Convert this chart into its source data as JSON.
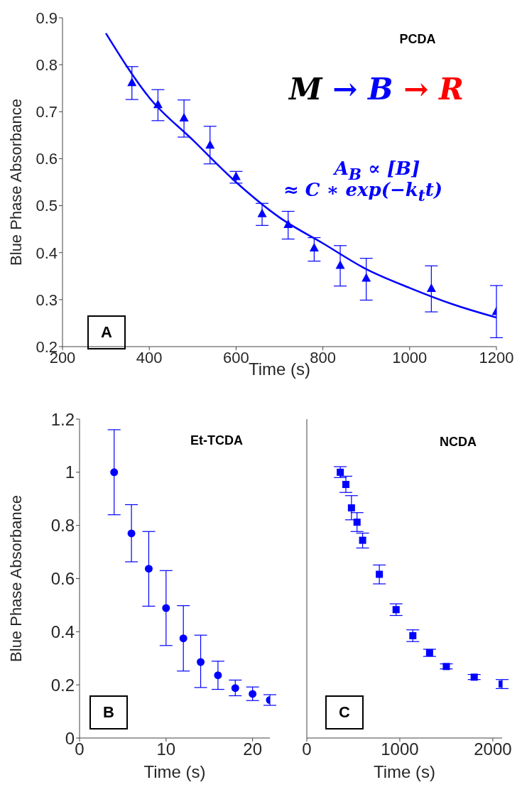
{
  "chart_data": [
    {
      "type": "scatter",
      "xlabel": "Time (s)",
      "ylabel": "Blue Phase Absorbance",
      "marker": "triangle",
      "xlim": [
        200,
        1200
      ],
      "xticks": [
        200,
        400,
        600,
        800,
        1000,
        1200
      ],
      "ylim": [
        0.2,
        0.9
      ],
      "yticks": [
        0.2,
        0.3,
        0.4,
        0.5,
        0.6,
        0.7,
        0.8,
        0.9
      ],
      "annotations": [
        "PCDA",
        "M → B → R",
        "A$_{B}$ ∝ [B]",
        "≈ C ∗ exp(−k$_{t}$t)",
        "A"
      ],
      "series": [
        {
          "color": "#0000ff",
          "x": [
            360,
            420,
            480,
            540,
            600,
            660,
            720,
            780,
            840,
            900,
            1050,
            1200
          ],
          "values": [
            0.762,
            0.715,
            0.687,
            0.629,
            0.562,
            0.483,
            0.46,
            0.41,
            0.373,
            0.346,
            0.324,
            0.275
          ],
          "errors": [
            [
              0.726,
              0.796
            ],
            [
              0.681,
              0.747
            ],
            [
              0.646,
              0.725
            ],
            [
              0.589,
              0.669
            ],
            [
              0.548,
              0.573
            ],
            [
              0.458,
              0.505
            ],
            [
              0.429,
              0.488
            ],
            [
              0.382,
              0.432
            ],
            [
              0.329,
              0.415
            ],
            [
              0.299,
              0.388
            ],
            [
              0.274,
              0.372
            ],
            [
              0.219,
              0.33
            ]
          ]
        },
        {
          "type": "line",
          "marker": "none",
          "color": "#0000ff",
          "x": [
            300,
            400,
            500,
            600,
            700,
            800,
            900,
            1000,
            1100,
            1200
          ],
          "values": [
            0.867,
            0.73,
            0.64,
            0.55,
            0.475,
            0.42,
            0.365,
            0.325,
            0.29,
            0.262
          ]
        }
      ]
    },
    {
      "type": "scatter",
      "xlabel": "Time (s)",
      "ylabel": "Blue Phase Absorbance",
      "marker": "circle",
      "xlim": [
        0,
        22
      ],
      "xticks": [
        0,
        10,
        20
      ],
      "ylim": [
        0,
        1.2
      ],
      "yticks": [
        0,
        0.2,
        0.4,
        0.6,
        0.8,
        1,
        1.2
      ],
      "annotations": [
        "Et-TCDA",
        "B"
      ],
      "series": [
        {
          "color": "#0000ff",
          "x": [
            4,
            6,
            8,
            10,
            12,
            14,
            16,
            18,
            20,
            22
          ],
          "values": [
            1.0,
            0.77,
            0.637,
            0.489,
            0.375,
            0.286,
            0.236,
            0.188,
            0.166,
            0.143
          ],
          "errors": [
            [
              0.84,
              1.16
            ],
            [
              0.663,
              0.878
            ],
            [
              0.496,
              0.777
            ],
            [
              0.348,
              0.63
            ],
            [
              0.252,
              0.498
            ],
            [
              0.19,
              0.387
            ],
            [
              0.183,
              0.289
            ],
            [
              0.159,
              0.218
            ],
            [
              0.141,
              0.192
            ],
            [
              0.123,
              0.163
            ]
          ]
        }
      ]
    },
    {
      "type": "scatter",
      "xlabel": "Time (s)",
      "marker": "square",
      "tick_labels": "x",
      "xlim": [
        0,
        2100
      ],
      "xticks": [
        0,
        1000,
        2000
      ],
      "ylim": [
        0,
        1.2
      ],
      "yticks": [
        0,
        0.2,
        0.4,
        0.6,
        0.8,
        1,
        1.2
      ],
      "annotations": [
        "NCDA",
        "C"
      ],
      "series": [
        {
          "color": "#0000ff",
          "x": [
            360,
            420,
            480,
            540,
            600,
            780,
            960,
            1140,
            1320,
            1500,
            1800,
            2100
          ],
          "values": [
            1.0,
            0.954,
            0.866,
            0.812,
            0.744,
            0.616,
            0.483,
            0.385,
            0.321,
            0.269,
            0.229,
            0.203
          ],
          "errors": [
            [
              0.98,
              1.021
            ],
            [
              0.924,
              0.985
            ],
            [
              0.821,
              0.912
            ],
            [
              0.777,
              0.848
            ],
            [
              0.715,
              0.771
            ],
            [
              0.58,
              0.651
            ],
            [
              0.461,
              0.505
            ],
            [
              0.363,
              0.407
            ],
            [
              0.307,
              0.334
            ],
            [
              0.26,
              0.279
            ],
            [
              0.22,
              0.239
            ],
            [
              0.186,
              0.22
            ]
          ]
        }
      ]
    }
  ]
}
